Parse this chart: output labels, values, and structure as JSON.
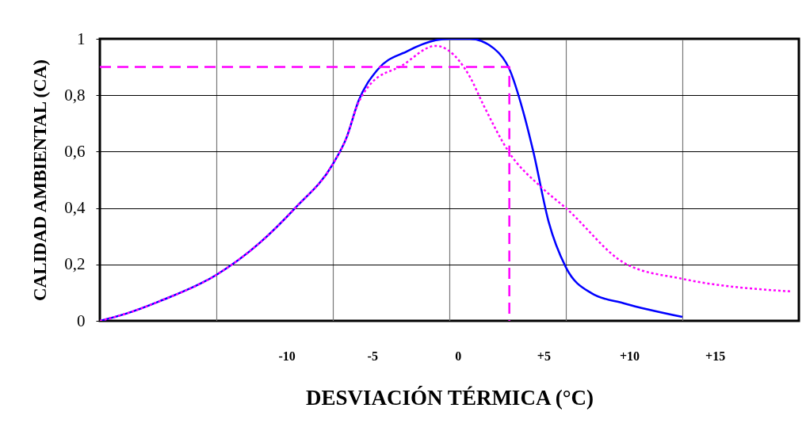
{
  "chart_data": {
    "type": "line",
    "xlabel": "DESVIACIÓN TÉRMICA (°C)",
    "ylabel": "CALIDAD AMBIENTAL (CA)",
    "xlim": [
      -20.9,
      19.9
    ],
    "ylim": [
      0,
      1
    ],
    "xticks": [
      {
        "value": -14.1,
        "label": null
      },
      -10,
      {
        "value": -7.3,
        "label": null
      },
      -5,
      {
        "value": -0.5,
        "label": null
      },
      0,
      {
        "value": 5,
        "label": "+5"
      },
      {
        "value": 6.3,
        "label": null
      },
      {
        "value": 10,
        "label": "+10"
      },
      {
        "value": 13.1,
        "label": null
      },
      {
        "value": 15,
        "label": "+15"
      }
    ],
    "yticks": [
      0,
      {
        "value": 0.2,
        "label": "0,2"
      },
      {
        "value": 0.4,
        "label": "0,4"
      },
      {
        "value": 0.6,
        "label": "0,6"
      },
      {
        "value": 0.8,
        "label": "0,8"
      },
      1
    ],
    "grid": true,
    "series": [
      {
        "color": "#0000ff",
        "line_style": "solid",
        "x": [
          -20.9,
          -19.4,
          -17.4,
          -14.1,
          -11.6,
          -9.5,
          -7.3,
          -6.5,
          -5.8,
          -4.7,
          -3.0,
          -1.3,
          -0.5,
          0.7,
          2.1,
          3.0,
          3.8,
          4.4,
          5.3,
          6.3,
          7.8,
          9.7,
          13.1
        ],
        "values": [
          0,
          0.025,
          0.07,
          0.163,
          0.275,
          0.4,
          0.556,
          0.65,
          0.78,
          0.89,
          0.955,
          0.995,
          1,
          1,
          0.966,
          0.893,
          0.744,
          0.6,
          0.35,
          0.19,
          0.098,
          0.062,
          0.014
        ]
      },
      {
        "color": "#ff00ff",
        "line_style": "dotted",
        "x": [
          -20.9,
          -19.4,
          -17.4,
          -14.1,
          -11.6,
          -9.5,
          -7.3,
          -6.5,
          -5.9,
          -5.1,
          -3.3,
          -1.3,
          0.1,
          0.7,
          1.5,
          3.0,
          4.9,
          6.3,
          9.8,
          13.1,
          19.5
        ],
        "values": [
          0,
          0.025,
          0.07,
          0.163,
          0.275,
          0.4,
          0.556,
          0.65,
          0.76,
          0.84,
          0.904,
          0.975,
          0.92,
          0.865,
          0.764,
          0.596,
          0.472,
          0.4,
          0.202,
          0.149,
          0.104
        ]
      },
      {
        "color": "#ff00ff",
        "line_style": "dashed",
        "x": [
          -20.9,
          3.0,
          3.0
        ],
        "values": [
          0.9,
          0.9,
          0
        ]
      }
    ]
  }
}
